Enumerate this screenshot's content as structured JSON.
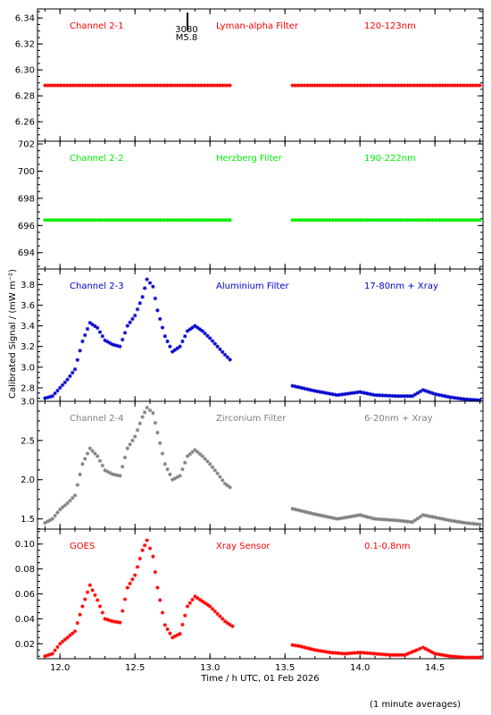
{
  "chart_data": {
    "type": "scatter",
    "xlabel": "Time / h UTC, 01 Feb 2026",
    "ylabel": "Calibrated Signal / (mW m⁻²)",
    "footnote": "(1 minute averages)",
    "xlim": [
      11.85,
      14.82
    ],
    "xticks": [
      "12.0",
      "12.5",
      "13.0",
      "13.5",
      "14.0",
      "14.5"
    ],
    "xtick_values": [
      12.0,
      12.5,
      13.0,
      13.5,
      14.0,
      14.5
    ],
    "marker": "asterisk",
    "data_gap": [
      13.15,
      13.55
    ],
    "event_marker": {
      "x": 12.85,
      "label_top": "3080",
      "label_bottom": "M5.8"
    },
    "panels": [
      {
        "id": "ch21",
        "channel": "Channel 2-1",
        "filter": "Lyman-alpha Filter",
        "band": "120-123nm",
        "color": "#ff0000",
        "ylim": [
          6.245,
          6.347
        ],
        "yticks": [
          "6.26",
          "6.28",
          "6.30",
          "6.32",
          "6.34"
        ],
        "ytick_values": [
          6.26,
          6.28,
          6.3,
          6.32,
          6.34
        ],
        "series": {
          "x": [
            11.9,
            12.0,
            12.1,
            12.2,
            12.3,
            12.4,
            12.5,
            12.6,
            12.7,
            12.8,
            12.9,
            13.0,
            13.1,
            13.15,
            13.55,
            13.7,
            13.9,
            14.1,
            14.3,
            14.5,
            14.7,
            14.8
          ],
          "y": [
            6.288,
            6.288,
            6.288,
            6.288,
            6.288,
            6.288,
            6.288,
            6.288,
            6.288,
            6.288,
            6.288,
            6.288,
            6.288,
            6.288,
            6.288,
            6.288,
            6.288,
            6.288,
            6.288,
            6.288,
            6.288,
            6.288
          ]
        }
      },
      {
        "id": "ch22",
        "channel": "Channel 2-2",
        "filter": "Herzberg Filter",
        "band": "190-222nm",
        "color": "#00ee00",
        "ylim": [
          692.8,
          702.2
        ],
        "yticks": [
          "694",
          "696",
          "698",
          "700",
          "702"
        ],
        "ytick_values": [
          694,
          696,
          698,
          700,
          702
        ],
        "series": {
          "x": [
            11.9,
            12.0,
            12.2,
            12.4,
            12.6,
            12.8,
            13.0,
            13.15,
            13.55,
            13.8,
            14.0,
            14.2,
            14.4,
            14.6,
            14.8
          ],
          "y": [
            696.4,
            696.4,
            696.4,
            696.4,
            696.4,
            696.4,
            696.4,
            696.4,
            696.4,
            696.4,
            696.4,
            696.4,
            696.4,
            696.4,
            696.4
          ]
        }
      },
      {
        "id": "ch23",
        "channel": "Channel 2-3",
        "filter": "Aluminium Filter",
        "band": "17-80nm + Xray",
        "color": "#0000cc",
        "ylim": [
          2.67,
          3.95
        ],
        "yticks": [
          "2.8",
          "3.0",
          "3.2",
          "3.4",
          "3.6",
          "3.8"
        ],
        "ytick_values": [
          2.8,
          3.0,
          3.2,
          3.4,
          3.6,
          3.8
        ],
        "series": {
          "x": [
            11.9,
            11.95,
            12.0,
            12.05,
            12.1,
            12.15,
            12.2,
            12.25,
            12.3,
            12.35,
            12.4,
            12.45,
            12.5,
            12.55,
            12.58,
            12.62,
            12.65,
            12.7,
            12.75,
            12.8,
            12.85,
            12.9,
            12.95,
            13.0,
            13.05,
            13.1,
            13.15,
            13.55,
            13.7,
            13.85,
            14.0,
            14.1,
            14.25,
            14.35,
            14.42,
            14.5,
            14.6,
            14.7,
            14.8
          ],
          "y": [
            2.7,
            2.72,
            2.8,
            2.88,
            2.98,
            3.25,
            3.43,
            3.38,
            3.26,
            3.22,
            3.2,
            3.4,
            3.5,
            3.68,
            3.85,
            3.78,
            3.55,
            3.3,
            3.15,
            3.2,
            3.35,
            3.4,
            3.35,
            3.28,
            3.2,
            3.12,
            3.05,
            2.82,
            2.77,
            2.73,
            2.76,
            2.73,
            2.72,
            2.72,
            2.78,
            2.74,
            2.71,
            2.69,
            2.68
          ]
        }
      },
      {
        "id": "ch24",
        "channel": "Channel 2-4",
        "filter": "Zirconium Filter",
        "band": "6-20nm + Xray",
        "color": "#808080",
        "ylim": [
          1.37,
          3.0
        ],
        "yticks": [
          "1.5",
          "2.0",
          "2.5",
          "3.0"
        ],
        "ytick_values": [
          1.5,
          2.0,
          2.5,
          3.0
        ],
        "series": {
          "x": [
            11.9,
            11.95,
            12.0,
            12.05,
            12.1,
            12.15,
            12.2,
            12.25,
            12.3,
            12.35,
            12.4,
            12.45,
            12.5,
            12.55,
            12.58,
            12.62,
            12.65,
            12.7,
            12.75,
            12.8,
            12.85,
            12.9,
            12.95,
            13.0,
            13.05,
            13.1,
            13.15,
            13.55,
            13.7,
            13.85,
            14.0,
            14.1,
            14.25,
            14.35,
            14.42,
            14.5,
            14.6,
            14.7,
            14.8
          ],
          "y": [
            1.45,
            1.5,
            1.62,
            1.7,
            1.8,
            2.2,
            2.4,
            2.3,
            2.12,
            2.07,
            2.05,
            2.4,
            2.55,
            2.8,
            2.92,
            2.85,
            2.6,
            2.2,
            2.0,
            2.05,
            2.3,
            2.38,
            2.3,
            2.2,
            2.08,
            1.95,
            1.88,
            1.63,
            1.56,
            1.5,
            1.55,
            1.5,
            1.48,
            1.46,
            1.55,
            1.52,
            1.48,
            1.45,
            1.43
          ]
        }
      },
      {
        "id": "goes",
        "channel": "GOES",
        "filter": "Xray Sensor",
        "band": "0.1-0.8nm",
        "color": "#ff0000",
        "ylim": [
          0.008,
          0.112
        ],
        "yticks": [
          "0.02",
          "0.04",
          "0.06",
          "0.08",
          "0.10"
        ],
        "ytick_values": [
          0.02,
          0.04,
          0.06,
          0.08,
          0.1
        ],
        "series": {
          "x": [
            11.9,
            11.95,
            12.0,
            12.05,
            12.1,
            12.15,
            12.2,
            12.25,
            12.3,
            12.35,
            12.4,
            12.45,
            12.5,
            12.55,
            12.58,
            12.62,
            12.65,
            12.7,
            12.75,
            12.8,
            12.85,
            12.9,
            13.0,
            13.1,
            13.2,
            13.3,
            13.4,
            13.5,
            13.6,
            13.7,
            13.8,
            13.9,
            14.0,
            14.1,
            14.2,
            14.3,
            14.38,
            14.42,
            14.5,
            14.6,
            14.7,
            14.8
          ],
          "y": [
            0.01,
            0.012,
            0.02,
            0.025,
            0.03,
            0.05,
            0.067,
            0.055,
            0.04,
            0.038,
            0.037,
            0.065,
            0.075,
            0.095,
            0.103,
            0.09,
            0.065,
            0.035,
            0.025,
            0.028,
            0.05,
            0.058,
            0.05,
            0.038,
            0.03,
            0.025,
            0.022,
            0.02,
            0.018,
            0.015,
            0.013,
            0.012,
            0.013,
            0.012,
            0.011,
            0.011,
            0.015,
            0.017,
            0.012,
            0.01,
            0.009,
            0.009
          ]
        }
      }
    ]
  }
}
